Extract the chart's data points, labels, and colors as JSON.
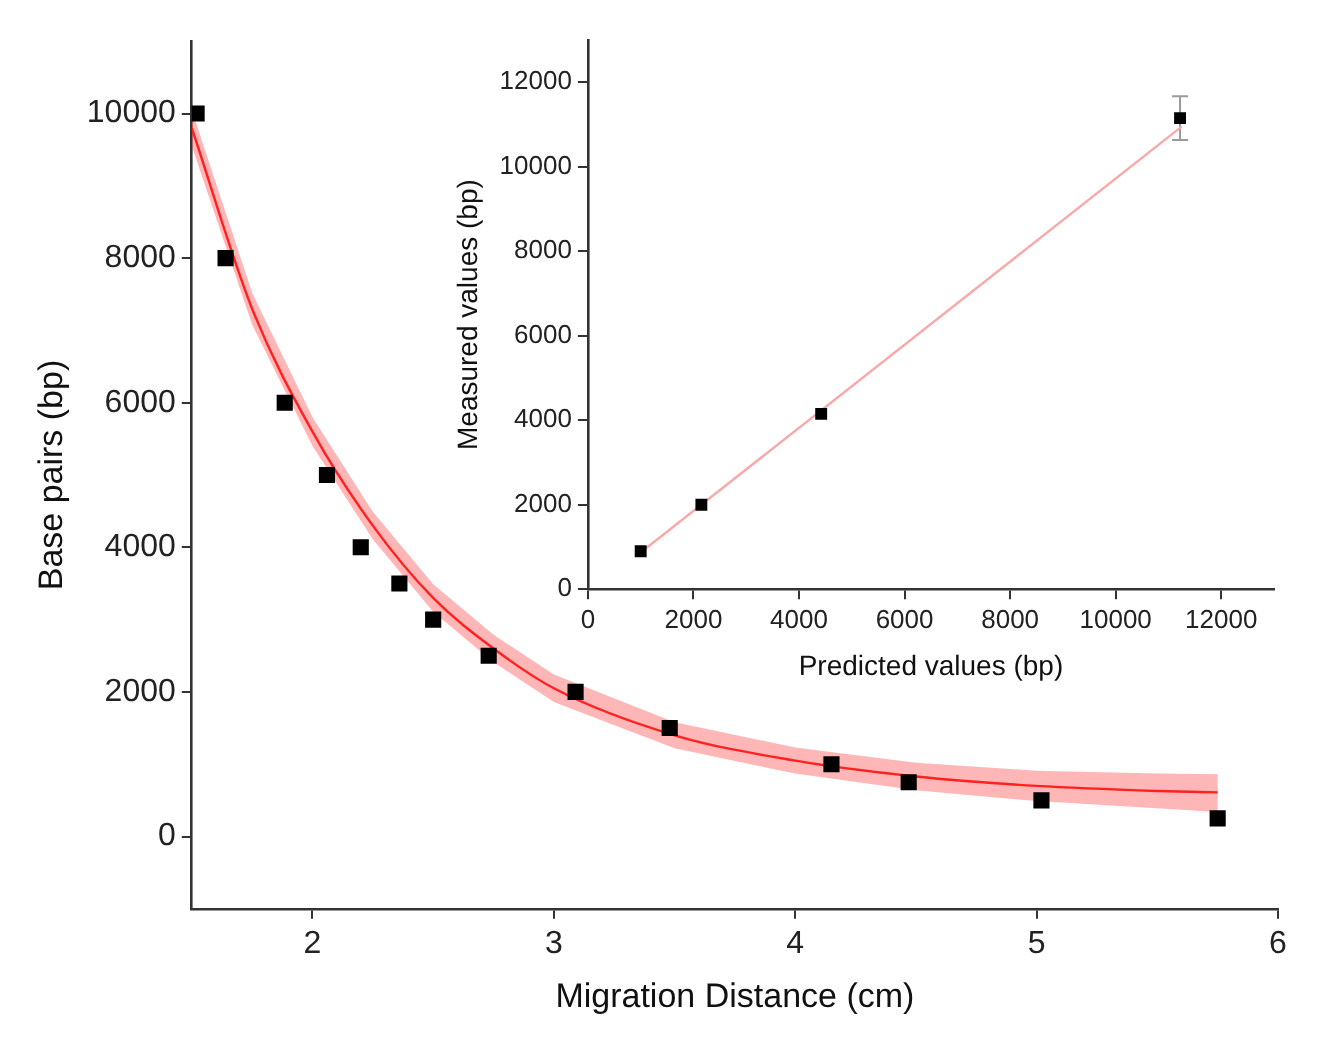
{
  "chart_data": [
    {
      "type": "scatter",
      "xlabel": "Migration Distance (cm)",
      "ylabel": "Base pairs (bp)",
      "xlim": [
        1.5,
        6
      ],
      "xticks": [
        2,
        3,
        4,
        5,
        6
      ],
      "ylim": [
        -1000,
        11000
      ],
      "yticks": [
        0,
        2000,
        4000,
        6000,
        8000,
        10000
      ],
      "grid": false,
      "legend": false,
      "series": [
        {
          "type": "line",
          "marker": "none",
          "color": "#ff2020",
          "x": [
            1.5,
            1.75,
            2,
            2.25,
            2.5,
            2.75,
            3,
            3.5,
            4,
            4.5,
            5,
            5.5,
            5.75
          ],
          "values": [
            9800,
            7300,
            5600,
            4300,
            3300,
            2600,
            2050,
            1400,
            1050,
            830,
            700,
            630,
            610
          ],
          "lower": [
            9550,
            7080,
            5400,
            4110,
            3110,
            2410,
            1860,
            1220,
            870,
            640,
            490,
            390,
            340
          ],
          "upper": [
            10050,
            7520,
            5800,
            4490,
            3490,
            2790,
            2240,
            1580,
            1230,
            1020,
            910,
            870,
            860
          ]
        },
        {
          "marker": "square",
          "color": "#000000",
          "x": [
            1.52,
            1.64,
            1.885,
            2.06,
            2.2,
            2.36,
            2.5,
            2.73,
            3.09,
            3.48,
            4.15,
            4.47,
            5.02,
            5.75
          ],
          "values": [
            10000,
            8000,
            6000,
            5000,
            4000,
            3500,
            3000,
            2500,
            2000,
            1500,
            1000,
            750,
            500,
            250
          ]
        }
      ]
    },
    {
      "type": "scatter",
      "xlabel": "Predicted values (bp)",
      "ylabel": "Measured values (bp)",
      "xlim": [
        0,
        13000
      ],
      "xticks": [
        0,
        2000,
        4000,
        6000,
        8000,
        10000,
        12000
      ],
      "ylim": [
        0,
        13000
      ],
      "yticks": [
        0,
        2000,
        4000,
        6000,
        8000,
        10000,
        12000
      ],
      "grid": false,
      "legend": false,
      "series": [
        {
          "type": "line",
          "marker": "none",
          "color": "#f8a8a8",
          "x": [
            1000,
            11250
          ],
          "values": [
            870,
            10950
          ]
        },
        {
          "marker": "square",
          "color": "#000000",
          "x": [
            1000,
            2150,
            4420,
            11220
          ],
          "values": [
            900,
            2000,
            4150,
            11150
          ],
          "errors": [
            null,
            null,
            null,
            520
          ]
        }
      ]
    }
  ]
}
